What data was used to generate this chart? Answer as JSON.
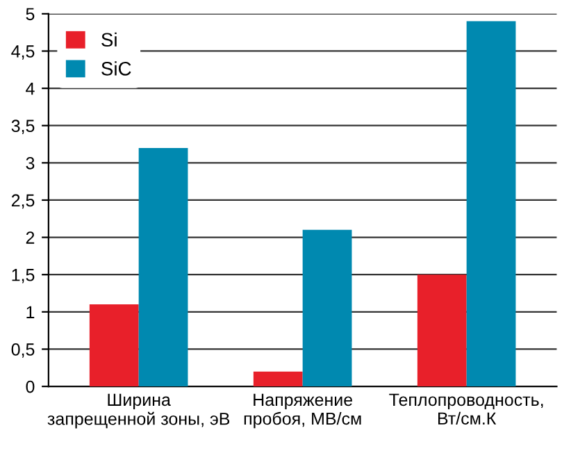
{
  "chart_data": {
    "type": "bar",
    "categories": [
      "Ширина\nзапрещенной зоны, эВ",
      "Напряжение\nпробоя, МВ/см",
      "Теплопроводность,\nВт/см.К"
    ],
    "series": [
      {
        "name": "Si",
        "color": "#e8202a",
        "values": [
          1.1,
          0.2,
          1.5
        ]
      },
      {
        "name": "SiC",
        "color": "#0089b0",
        "values": [
          3.2,
          2.1,
          4.9
        ]
      }
    ],
    "ylim": [
      0,
      5
    ],
    "yticks": [
      0,
      {
        "value": 0.5,
        "label": "0,5"
      },
      1,
      {
        "value": 1.5,
        "label": "1,5"
      },
      2,
      {
        "value": 2.5,
        "label": "2,5"
      },
      3,
      {
        "value": 3.5,
        "label": "3,5"
      },
      4,
      {
        "value": 4.5,
        "label": "4,5"
      },
      5
    ],
    "grid": "y",
    "legend": "top left"
  }
}
